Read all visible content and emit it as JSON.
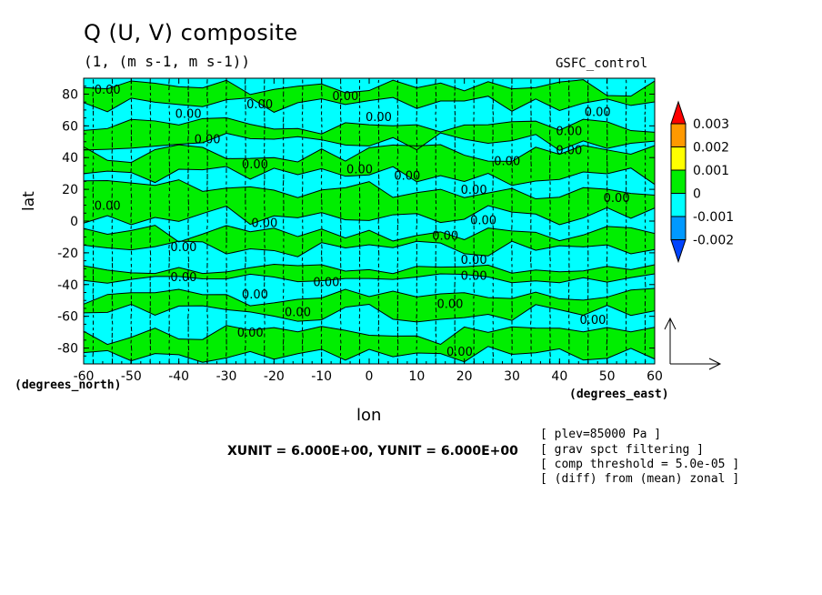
{
  "chart_data": {
    "type": "heatmap",
    "title": "Q (U, V) composite",
    "subtitle": "(1, (m s-1, m s-1))",
    "run_label": "GSFC_control",
    "xlabel": "lon",
    "ylabel": "lat",
    "x_unit_label": "(degrees_east)",
    "y_unit_label": "(degrees_north)",
    "xlim": [
      -60,
      60
    ],
    "ylim": [
      -90,
      90
    ],
    "x_ticks": [
      -60,
      -50,
      -40,
      -30,
      -20,
      -10,
      0,
      10,
      20,
      30,
      40,
      50,
      60
    ],
    "y_ticks": [
      -80,
      -60,
      -40,
      -20,
      0,
      20,
      40,
      60,
      80
    ],
    "contour_levels": [
      -0.002,
      -0.001,
      0,
      0.001,
      0.002,
      0.003
    ],
    "colorbar": {
      "labels": [
        "0.003",
        "0.002",
        "0.001",
        "0",
        "-0.001",
        "-0.002"
      ],
      "colors": [
        "#ff0000",
        "#ff9900",
        "#ffff00",
        "#00ee00",
        "#00ffff",
        "#0099ff",
        "#0044ff"
      ]
    },
    "fill_colors": {
      "positive": "#00ee00",
      "negative": "#00ffff"
    },
    "bands": [
      {
        "lat_from": 84,
        "lat_to": 90,
        "sign": "negative"
      },
      {
        "lat_from": 74,
        "lat_to": 84,
        "sign": "positive"
      },
      {
        "lat_from": 60,
        "lat_to": 74,
        "sign": "negative"
      },
      {
        "lat_from": 50,
        "lat_to": 60,
        "sign": "positive"
      },
      {
        "lat_from": 42,
        "lat_to": 50,
        "sign": "negative"
      },
      {
        "lat_from": 28,
        "lat_to": 42,
        "sign": "positive"
      },
      {
        "lat_from": 20,
        "lat_to": 28,
        "sign": "negative"
      },
      {
        "lat_from": 4,
        "lat_to": 20,
        "sign": "positive"
      },
      {
        "lat_from": -8,
        "lat_to": 4,
        "sign": "negative"
      },
      {
        "lat_from": -18,
        "lat_to": -8,
        "sign": "positive"
      },
      {
        "lat_from": -30,
        "lat_to": -18,
        "sign": "negative"
      },
      {
        "lat_from": -36,
        "lat_to": -30,
        "sign": "positive"
      },
      {
        "lat_from": -48,
        "lat_to": -36,
        "sign": "negative"
      },
      {
        "lat_from": -58,
        "lat_to": -48,
        "sign": "positive"
      },
      {
        "lat_from": -72,
        "lat_to": -58,
        "sign": "negative"
      },
      {
        "lat_from": -84,
        "lat_to": -72,
        "sign": "positive"
      },
      {
        "lat_from": -90,
        "lat_to": -84,
        "sign": "negative"
      }
    ],
    "contour_labels": [
      {
        "text": "0.00",
        "lon": -55,
        "lat": 83
      },
      {
        "text": "0.00",
        "lon": -38,
        "lat": 68
      },
      {
        "text": "0.00",
        "lon": -23,
        "lat": 74
      },
      {
        "text": "0.00",
        "lon": -5,
        "lat": 79
      },
      {
        "text": "0.00",
        "lon": 2,
        "lat": 66
      },
      {
        "text": "0.00",
        "lon": 48,
        "lat": 69
      },
      {
        "text": "0.00",
        "lon": 42,
        "lat": 57
      },
      {
        "text": "0.00",
        "lon": 42,
        "lat": 45
      },
      {
        "text": "0.00",
        "lon": -34,
        "lat": 52
      },
      {
        "text": "0.00",
        "lon": -24,
        "lat": 36
      },
      {
        "text": "0.00",
        "lon": -2,
        "lat": 33
      },
      {
        "text": "0.00",
        "lon": 8,
        "lat": 29
      },
      {
        "text": "0.00",
        "lon": 29,
        "lat": 38
      },
      {
        "text": "0.00",
        "lon": 22,
        "lat": 20
      },
      {
        "text": "0.00",
        "lon": 52,
        "lat": 15
      },
      {
        "text": "0.00",
        "lon": -55,
        "lat": 10
      },
      {
        "text": "0.00",
        "lon": -22,
        "lat": -1
      },
      {
        "text": "0.00",
        "lon": 24,
        "lat": 1
      },
      {
        "text": "0.00",
        "lon": 16,
        "lat": -9
      },
      {
        "text": "0.00",
        "lon": -39,
        "lat": -16
      },
      {
        "text": "0.00",
        "lon": 22,
        "lat": -24
      },
      {
        "text": "0.00",
        "lon": 22,
        "lat": -34
      },
      {
        "text": "0.00",
        "lon": -39,
        "lat": -35
      },
      {
        "text": "0.00",
        "lon": -9,
        "lat": -38
      },
      {
        "text": "0.00",
        "lon": -24,
        "lat": -46
      },
      {
        "text": "0.00",
        "lon": 17,
        "lat": -52
      },
      {
        "text": "0.00",
        "lon": -15,
        "lat": -57
      },
      {
        "text": "0.00",
        "lon": 47,
        "lat": -62
      },
      {
        "text": "0.00",
        "lon": -25,
        "lat": -70
      },
      {
        "text": "0.00",
        "lon": 19,
        "lat": -82
      }
    ],
    "vector_reference": "XUNIT = 6.000E+00, YUNIT = 6.000E+00",
    "notes": [
      "[ plev=85000 Pa ]",
      "[ grav spct filtering ]",
      "[ comp threshold = 5.0e-05 ]",
      "[ (diff) from (mean) zonal ]"
    ]
  }
}
